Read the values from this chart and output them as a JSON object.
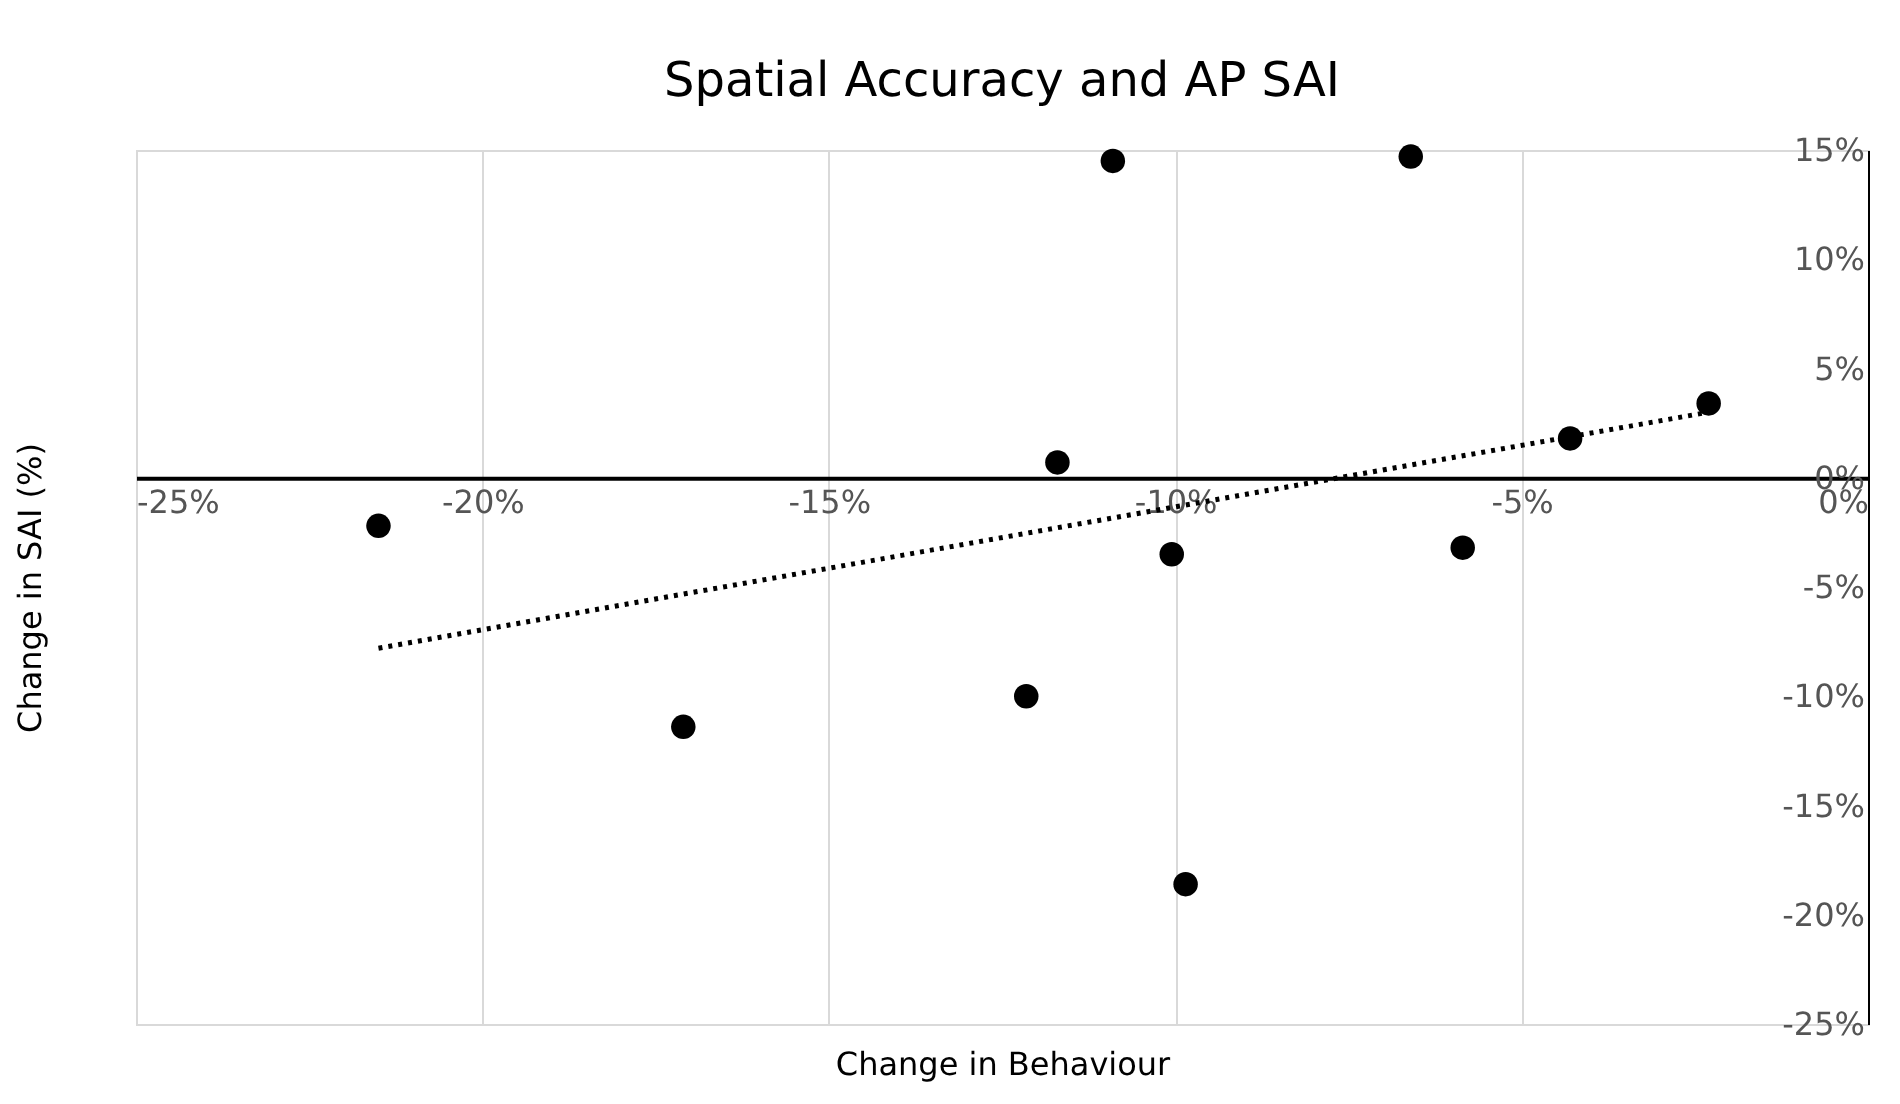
{
  "chart_data": {
    "type": "scatter",
    "title": "Spatial Accuracy and AP SAI",
    "xlabel": "Change in Behaviour",
    "ylabel": "Change in SAI (%)",
    "xlim": [
      -25,
      0
    ],
    "ylim": [
      -25,
      15
    ],
    "xticks": [
      {
        "value": -25,
        "label": "-25%"
      },
      {
        "value": -20,
        "label": "-20%"
      },
      {
        "value": -15,
        "label": "-15%"
      },
      {
        "value": -10,
        "label": "-10%"
      },
      {
        "value": -5,
        "label": "-5%"
      },
      {
        "value": 0,
        "label": "0%"
      }
    ],
    "yticks": [
      {
        "value": -25,
        "label": "-25%"
      },
      {
        "value": -20,
        "label": "-20%"
      },
      {
        "value": -15,
        "label": "-15%"
      },
      {
        "value": -10,
        "label": "-10%"
      },
      {
        "value": -5,
        "label": "-5%"
      },
      {
        "value": 0,
        "label": "0%"
      },
      {
        "value": 5,
        "label": "5%"
      },
      {
        "value": 10,
        "label": "10%"
      },
      {
        "value": 15,
        "label": "15%"
      }
    ],
    "grid": "x",
    "series": [
      {
        "type": "scatter",
        "marker": "circle",
        "color": "#000000",
        "x": [
          -21.5,
          -17.1,
          -12.15,
          -11.7,
          -10.9,
          -10.05,
          -9.85,
          -6.6,
          -5.85,
          -4.3,
          -2.3
        ],
        "values": [
          -2.2,
          -11.4,
          -10.0,
          0.7,
          14.5,
          -3.5,
          -18.6,
          14.7,
          -3.2,
          1.8,
          3.4
        ]
      },
      {
        "type": "line",
        "color": "#000000",
        "line_style": "dotted",
        "x": [
          -21.5,
          -2.3
        ],
        "values": [
          -7.8,
          3.0
        ]
      }
    ]
  }
}
